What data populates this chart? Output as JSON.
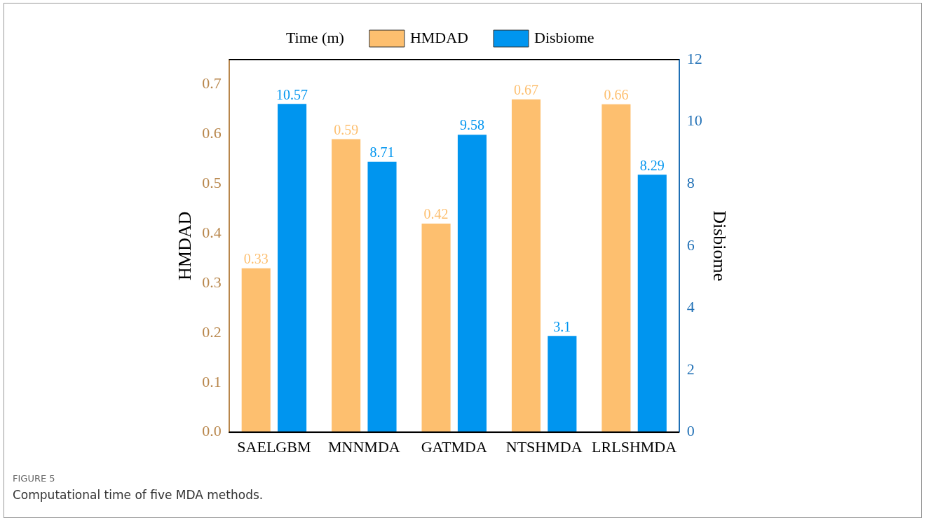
{
  "chart_data": {
    "type": "bar",
    "categories": [
      "SAELGBM",
      "MNNMDA",
      "GATMDA",
      "NTSHMDA",
      "LRLSHMDA"
    ],
    "series": [
      {
        "name": "HMDAD",
        "color": "#fdbf6f",
        "values": [
          0.33,
          0.59,
          0.42,
          0.67,
          0.66
        ]
      },
      {
        "name": "Disbiome",
        "color": "#0095ef",
        "values": [
          10.57,
          8.71,
          9.58,
          3.1,
          8.29
        ],
        "axis": "y2"
      }
    ],
    "ylabel": "HMDAD",
    "y2label": "Disbiome",
    "legend_title": "Time (m)",
    "ylim": [
      0,
      0.75
    ],
    "yticks": [
      {
        "value": 0,
        "label": "0.0"
      },
      0.1,
      0.2,
      0.3,
      0.4,
      0.5,
      0.6,
      0.7
    ],
    "y2lim": [
      0,
      12
    ],
    "y2ticks": [
      0,
      2,
      4,
      6,
      8,
      10,
      12
    ],
    "data_labels": true,
    "grid": false,
    "legend": "top",
    "annotations": [
      "FIGURE 5",
      "Computational time of five MDA methods."
    ]
  }
}
